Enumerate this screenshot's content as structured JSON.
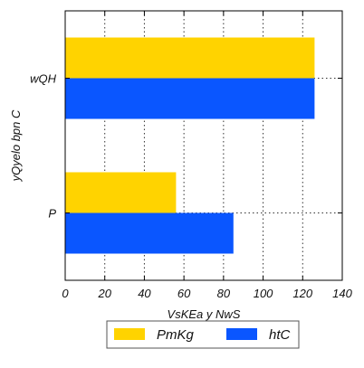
{
  "chart_data": {
    "type": "bar",
    "orientation": "horizontal",
    "categories": [
      "wQH",
      "P"
    ],
    "series": [
      {
        "name": "PmKg",
        "values": [
          126,
          56
        ],
        "color": "#FFD300"
      },
      {
        "name": "htC",
        "values": [
          126,
          85
        ],
        "color": "#0A56FF"
      }
    ],
    "xlabel": "VsKEa y NwS",
    "ylabel": "yQyelo bpn C",
    "xlim": [
      0,
      140
    ],
    "xticks": [
      "0",
      "20",
      "40",
      "60",
      "80",
      "100",
      "120",
      "140"
    ],
    "grid": true,
    "legend_position": "bottom"
  }
}
